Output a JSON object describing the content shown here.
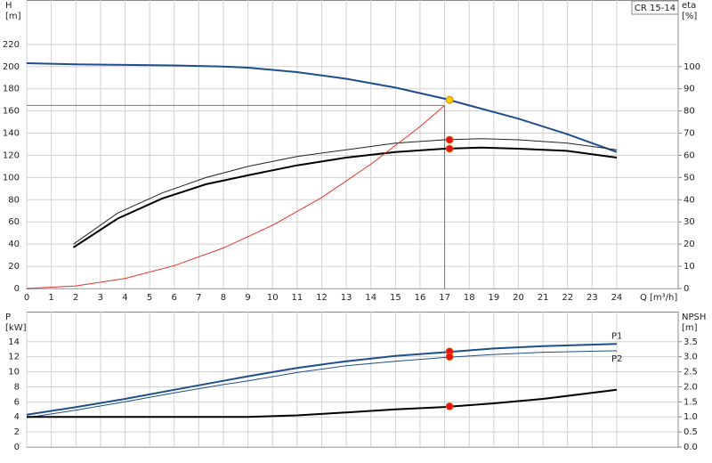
{
  "chart_data": [
    {
      "type": "line",
      "label": "CR 15-14",
      "ylabel": "H",
      "yunit": "[m]",
      "y2label": "eta",
      "y2unit": "[%]",
      "xlabel": "Q [m³/h]",
      "xlim": [
        0,
        26.5
      ],
      "xticks": [
        0,
        1,
        2,
        3,
        4,
        5,
        6,
        7,
        8,
        9,
        10,
        11,
        12,
        13,
        14,
        15,
        16,
        17,
        18,
        19,
        20,
        21,
        22,
        23,
        24
      ],
      "ylim": [
        0,
        260
      ],
      "yticks": [
        0,
        20,
        40,
        60,
        80,
        100,
        120,
        140,
        160,
        180,
        200,
        220
      ],
      "y2lim": [
        0,
        130
      ],
      "y2ticks": [
        0,
        10,
        20,
        30,
        40,
        50,
        60,
        70,
        80,
        90,
        100
      ],
      "grid": true,
      "reference": {
        "x": 17,
        "y": 165,
        "color": "#777777"
      },
      "series": [
        {
          "color": "#1f4e8c",
          "width": 2,
          "x": [
            0,
            2,
            4,
            6,
            8,
            9,
            11,
            13,
            15,
            17,
            18,
            20,
            22,
            24
          ],
          "values": [
            203,
            202,
            201.5,
            201,
            200,
            199,
            195,
            189,
            181,
            171,
            165,
            153,
            139,
            123
          ]
        },
        {
          "color": "#222222",
          "width": 1,
          "axis": "y2",
          "x": [
            1.9,
            3.7,
            5.5,
            7.3,
            9,
            11,
            13,
            15,
            17,
            18.5,
            20,
            22,
            24
          ],
          "values": [
            20,
            34,
            43,
            50,
            55,
            59.5,
            62.5,
            65.5,
            67,
            67.5,
            67,
            65.5,
            62.5
          ]
        },
        {
          "color": "#000000",
          "width": 2,
          "axis": "y2",
          "x": [
            1.9,
            3.7,
            5.5,
            7.3,
            9,
            11,
            13,
            15,
            17,
            18.5,
            20,
            22,
            24
          ],
          "values": [
            18.5,
            31.5,
            40.5,
            47,
            51,
            55.5,
            59,
            61.5,
            63,
            63.5,
            63,
            62,
            59
          ]
        },
        {
          "color": "#e8322a",
          "width": 1,
          "x": [
            0,
            2,
            4,
            6,
            8,
            10,
            12,
            14,
            16,
            17
          ],
          "values": [
            0,
            2.3,
            9.1,
            20.6,
            36.5,
            57,
            82,
            112,
            146,
            165
          ]
        },
        {
          "color": "#ffcc00",
          "marker": true,
          "x": [
            17.2
          ],
          "values": [
            170
          ]
        },
        {
          "color": "#e8101a",
          "marker": true,
          "axis": "y2",
          "x": [
            17.2,
            17.2
          ],
          "values": [
            67,
            63
          ]
        }
      ]
    },
    {
      "type": "line",
      "ylabel": "P",
      "yunit": "[kW]",
      "y2label": "NPSH",
      "y2unit": "[m]",
      "xtick_labels": false,
      "xlim": [
        0,
        26.5
      ],
      "xticks": [
        0,
        1,
        2,
        3,
        4,
        5,
        6,
        7,
        8,
        9,
        10,
        11,
        12,
        13,
        14,
        15,
        16,
        17,
        18,
        19,
        20,
        21,
        22,
        23,
        24
      ],
      "ylim": [
        0,
        18
      ],
      "yticks": [
        0,
        2,
        4,
        6,
        8,
        10,
        12,
        14
      ],
      "y2lim": [
        0,
        4.5
      ],
      "y2ticks": [
        {
          "value": 0,
          "label": "0.0"
        },
        0.5,
        {
          "value": 1,
          "label": "1.0"
        },
        1.5,
        {
          "value": 2,
          "label": "2.0"
        },
        2.5,
        {
          "value": 3,
          "label": "3.0"
        },
        3.5
      ],
      "grid": true,
      "series": [
        {
          "name": "P1",
          "color": "#1f4e8c",
          "width": 2,
          "x": [
            0,
            2,
            4,
            6,
            8,
            9,
            11,
            13,
            15,
            17,
            19,
            21,
            24
          ],
          "values": [
            4.3,
            5.3,
            6.4,
            7.6,
            8.8,
            9.4,
            10.5,
            11.4,
            12.1,
            12.6,
            13.1,
            13.4,
            13.7
          ]
        },
        {
          "name": "P2",
          "color": "#1f4e8c",
          "width": 1,
          "x": [
            0,
            2,
            4,
            6,
            8,
            9,
            11,
            13,
            15,
            17,
            19,
            21,
            24
          ],
          "values": [
            3.9,
            4.9,
            6,
            7.2,
            8.3,
            8.8,
            9.9,
            10.8,
            11.4,
            11.9,
            12.3,
            12.6,
            12.8
          ]
        },
        {
          "color": "#000000",
          "width": 2,
          "axis": "y2",
          "x": [
            0,
            9,
            11,
            13,
            15,
            17,
            19,
            21,
            24
          ],
          "values": [
            1.0,
            1.0,
            1.05,
            1.15,
            1.25,
            1.33,
            1.45,
            1.6,
            1.9
          ]
        },
        {
          "color": "#e8101a",
          "marker": true,
          "x": [
            17.2,
            17.2
          ],
          "values": [
            12.7,
            12.0
          ]
        },
        {
          "color": "#e8101a",
          "marker": true,
          "axis": "y2",
          "x": [
            17.2
          ],
          "values": [
            1.35
          ]
        }
      ]
    }
  ]
}
